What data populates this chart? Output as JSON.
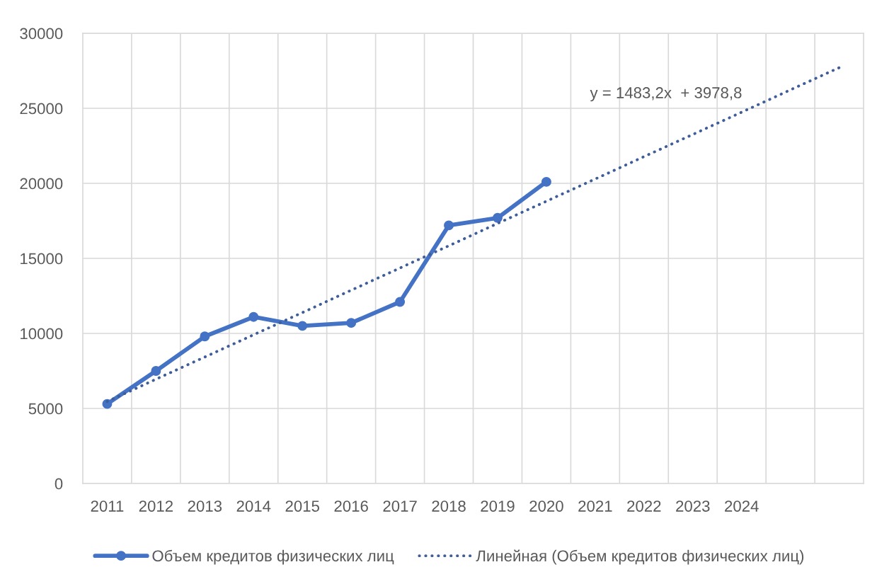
{
  "chart_data": {
    "type": "line",
    "categories": [
      "2011",
      "2012",
      "2013",
      "2014",
      "2015",
      "2016",
      "2017",
      "2018",
      "2019",
      "2020",
      "2021",
      "2022",
      "2023",
      "2024",
      null,
      null
    ],
    "series": [
      {
        "name": "Объем кредитов физических лиц",
        "color": "#4472c4",
        "marker": "circle",
        "line_style": "solid",
        "values": [
          5300,
          7500,
          9800,
          11100,
          10500,
          10700,
          12100,
          17200,
          17700,
          20100,
          null,
          null,
          null,
          null,
          null,
          null
        ]
      },
      {
        "name": "Линейная (Объем кредитов физических лиц)",
        "color": "#3e5d9a",
        "marker": "none",
        "line_style": "dotted",
        "values": [
          5460,
          6950,
          8430,
          9910,
          11390,
          12880,
          14360,
          15840,
          17330,
          18810,
          20290,
          21780,
          23260,
          24740,
          26230,
          27710
        ]
      }
    ],
    "ylim": [
      0,
      30000
    ],
    "yticks": [
      0,
      5000,
      10000,
      15000,
      20000,
      25000,
      30000
    ],
    "grid": true,
    "legend": "bottom",
    "annotations": [
      "y = 1483,2x  + 3978,8"
    ]
  }
}
